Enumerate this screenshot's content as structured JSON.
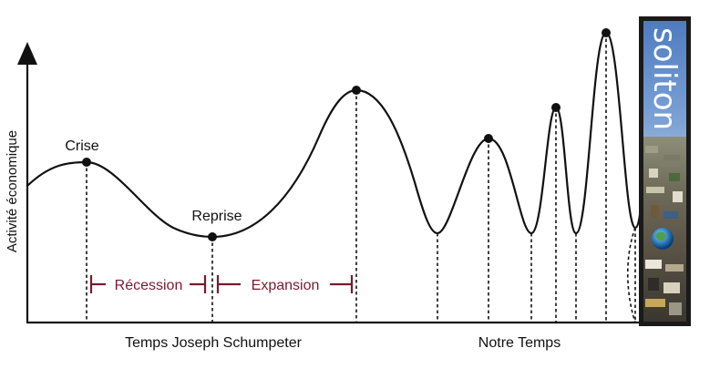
{
  "axes": {
    "y_label": "Activité économique"
  },
  "points": {
    "crisis": "Crise",
    "recovery": "Reprise"
  },
  "phases": {
    "recession": "Récession",
    "expansion": "Expansion"
  },
  "eras": {
    "schumpeter": "Temps Joseph Schumpeter",
    "ours": "Notre Temps"
  },
  "brand": {
    "name": "soliton"
  },
  "colors": {
    "curve": "#111111",
    "phase": "#7a1a2e",
    "panel_border": "#1a1a1a",
    "sky": "#5b86c6"
  }
}
